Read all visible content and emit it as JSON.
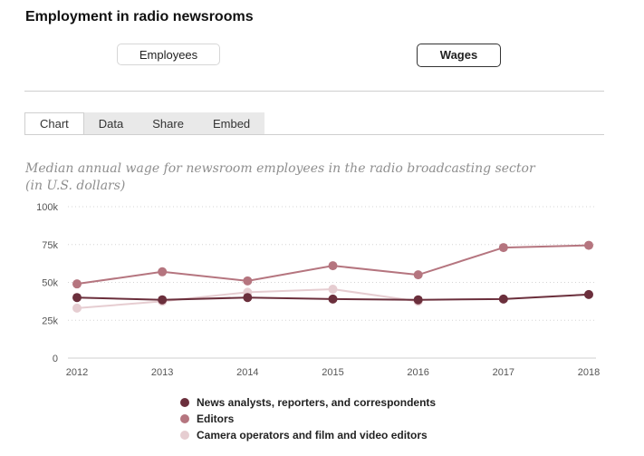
{
  "header": {
    "title": "Employment in radio newsrooms"
  },
  "toggles": [
    {
      "label": "Employees",
      "active": false
    },
    {
      "label": "Wages",
      "active": true
    }
  ],
  "tabs": [
    {
      "label": "Chart",
      "active": true
    },
    {
      "label": "Data",
      "active": false
    },
    {
      "label": "Share",
      "active": false
    },
    {
      "label": "Embed",
      "active": false
    }
  ],
  "chart_data": {
    "type": "line",
    "title": "Median annual wage for newsroom employees in the radio broadcasting sector (in U.S. dollars)",
    "subtitle_lines": [
      "Median annual wage for newsroom employees in the radio broadcasting sector",
      "(in U.S. dollars)"
    ],
    "x": [
      2012,
      2013,
      2014,
      2015,
      2016,
      2017,
      2018
    ],
    "ylim": [
      0,
      100000
    ],
    "yticks": [
      0,
      25000,
      50000,
      75000,
      100000
    ],
    "ytick_labels": [
      "0",
      "25k",
      "50k",
      "75k",
      "100k"
    ],
    "grid": "horizontal-dotted",
    "legend_position": "bottom",
    "series": [
      {
        "name": "News analysts, reporters, and correspondents",
        "color": "#6b2f3c",
        "values": [
          40000,
          38500,
          40000,
          39000,
          38500,
          39000,
          42000
        ]
      },
      {
        "name": "Editors",
        "color": "#b5757f",
        "values": [
          49000,
          57000,
          51000,
          61000,
          55000,
          73000,
          74500
        ]
      },
      {
        "name": "Camera operators and film and video editors",
        "color": "#e6cdd1",
        "values": [
          33000,
          37500,
          43500,
          45500,
          37500,
          null,
          null
        ]
      }
    ]
  }
}
